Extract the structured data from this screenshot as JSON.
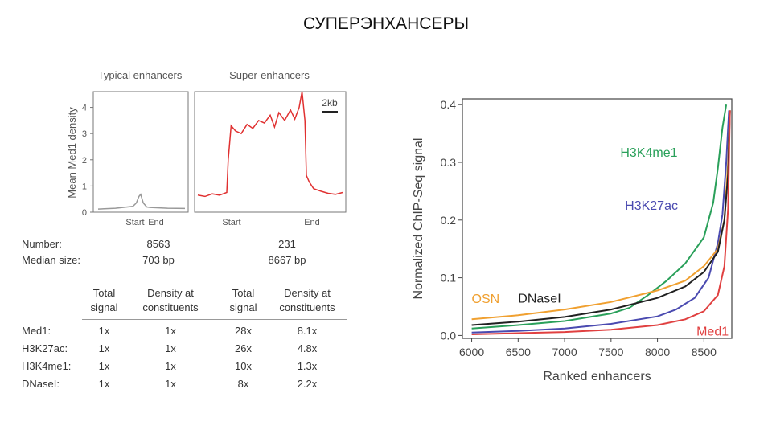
{
  "slide": {
    "title": "СУПЕРЭНХАНСЕРЫ"
  },
  "left_panel": {
    "typical_title": "Typical enhancers",
    "super_title": "Super-enhancers",
    "ylabel": "Mean Med1 density",
    "scale_bar": "2kb",
    "typical_ticks": [
      "Start",
      "End"
    ],
    "super_ticks": [
      "Start",
      "End"
    ],
    "stats": {
      "labels": [
        "Number:",
        "Median size:"
      ],
      "typical": [
        "8563",
        "703 bp"
      ],
      "super": [
        "231",
        "8667 bp"
      ]
    },
    "table": {
      "headers": [
        "Total\nsignal",
        "Density at\nconstituents",
        "Total\nsignal",
        "Density at\nconstituents"
      ],
      "rows": [
        {
          "label": "Med1:",
          "values": [
            "1x",
            "1x",
            "28x",
            "8.1x"
          ]
        },
        {
          "label": "H3K27ac:",
          "values": [
            "1x",
            "1x",
            "26x",
            "4.8x"
          ]
        },
        {
          "label": "H3K4me1:",
          "values": [
            "1x",
            "1x",
            "10x",
            "1.3x"
          ]
        },
        {
          "label": "DNaseI:",
          "values": [
            "1x",
            "1x",
            "8x",
            "2.2x"
          ]
        }
      ]
    }
  },
  "chart_data": [
    {
      "type": "line",
      "title": "Typical enhancers",
      "ylabel": "Mean Med1 density",
      "ylim": [
        0,
        4.6
      ],
      "yticks": [
        "0",
        "1",
        "2",
        "3",
        "4"
      ],
      "xlabels": [
        "Start",
        "End"
      ],
      "series": [
        {
          "color": "#999999",
          "x": [
            0,
            0.2,
            0.4,
            0.44,
            0.47,
            0.49,
            0.52,
            0.56,
            0.6,
            0.8,
            1.0
          ],
          "values": [
            0.12,
            0.15,
            0.22,
            0.35,
            0.6,
            0.68,
            0.35,
            0.2,
            0.18,
            0.15,
            0.14
          ]
        }
      ]
    },
    {
      "type": "line",
      "title": "Super-enhancers",
      "ylim": [
        0,
        4.6
      ],
      "xlabels": [
        "Start",
        "End"
      ],
      "series": [
        {
          "color": "#e03030",
          "x": [
            0,
            0.05,
            0.1,
            0.15,
            0.2,
            0.21,
            0.23,
            0.26,
            0.3,
            0.34,
            0.38,
            0.42,
            0.46,
            0.5,
            0.53,
            0.56,
            0.6,
            0.64,
            0.67,
            0.7,
            0.72,
            0.74,
            0.75,
            0.77,
            0.8,
            0.85,
            0.9,
            0.95,
            1.0
          ],
          "values": [
            0.65,
            0.6,
            0.7,
            0.65,
            0.75,
            2.0,
            3.3,
            3.1,
            3.0,
            3.35,
            3.2,
            3.5,
            3.4,
            3.7,
            3.25,
            3.8,
            3.5,
            3.9,
            3.55,
            4.0,
            4.6,
            3.5,
            1.4,
            1.15,
            0.9,
            0.8,
            0.72,
            0.68,
            0.75
          ]
        }
      ]
    },
    {
      "type": "line",
      "xlabel": "Ranked enhancers",
      "ylabel": "Normalized ChIP-Seq signal",
      "xlim": [
        5900,
        8800
      ],
      "ylim": [
        -0.005,
        0.41
      ],
      "xticks": [
        6000,
        6500,
        7000,
        7500,
        8000,
        8500
      ],
      "yticks": [
        0.0,
        0.1,
        0.2,
        0.3,
        0.4
      ],
      "ytick_labels": [
        "0.0",
        "0.1",
        "0.2",
        "0.3",
        "0.4"
      ],
      "series": [
        {
          "name": "H3K4me1",
          "color": "#2aa05a",
          "x": [
            6000,
            6500,
            7000,
            7500,
            7700,
            7900,
            8100,
            8300,
            8500,
            8600,
            8650,
            8700,
            8740
          ],
          "values": [
            0.012,
            0.018,
            0.025,
            0.038,
            0.048,
            0.07,
            0.095,
            0.125,
            0.17,
            0.23,
            0.29,
            0.36,
            0.4
          ]
        },
        {
          "name": "H3K27ac",
          "color": "#4a4ab0",
          "x": [
            6000,
            6500,
            7000,
            7500,
            8000,
            8200,
            8400,
            8550,
            8650,
            8700,
            8740,
            8770
          ],
          "values": [
            0.005,
            0.008,
            0.012,
            0.02,
            0.033,
            0.045,
            0.065,
            0.1,
            0.16,
            0.21,
            0.3,
            0.39
          ]
        },
        {
          "name": "OSN",
          "color": "#f0a030",
          "x": [
            6000,
            6500,
            7000,
            7500,
            8000,
            8300,
            8500,
            8650,
            8720,
            8760,
            8780
          ],
          "values": [
            0.028,
            0.035,
            0.045,
            0.058,
            0.078,
            0.095,
            0.12,
            0.15,
            0.2,
            0.3,
            0.39
          ]
        },
        {
          "name": "DNaseI",
          "color": "#202020",
          "x": [
            6000,
            6500,
            7000,
            7500,
            8000,
            8300,
            8500,
            8650,
            8720,
            8760,
            8780
          ],
          "values": [
            0.018,
            0.024,
            0.032,
            0.045,
            0.065,
            0.085,
            0.11,
            0.145,
            0.2,
            0.28,
            0.39
          ]
        },
        {
          "name": "Med1",
          "color": "#e04040",
          "x": [
            6000,
            6500,
            7000,
            7500,
            8000,
            8300,
            8500,
            8650,
            8720,
            8760,
            8780
          ],
          "values": [
            0.002,
            0.004,
            0.006,
            0.01,
            0.018,
            0.028,
            0.042,
            0.07,
            0.12,
            0.22,
            0.39
          ]
        }
      ]
    }
  ]
}
